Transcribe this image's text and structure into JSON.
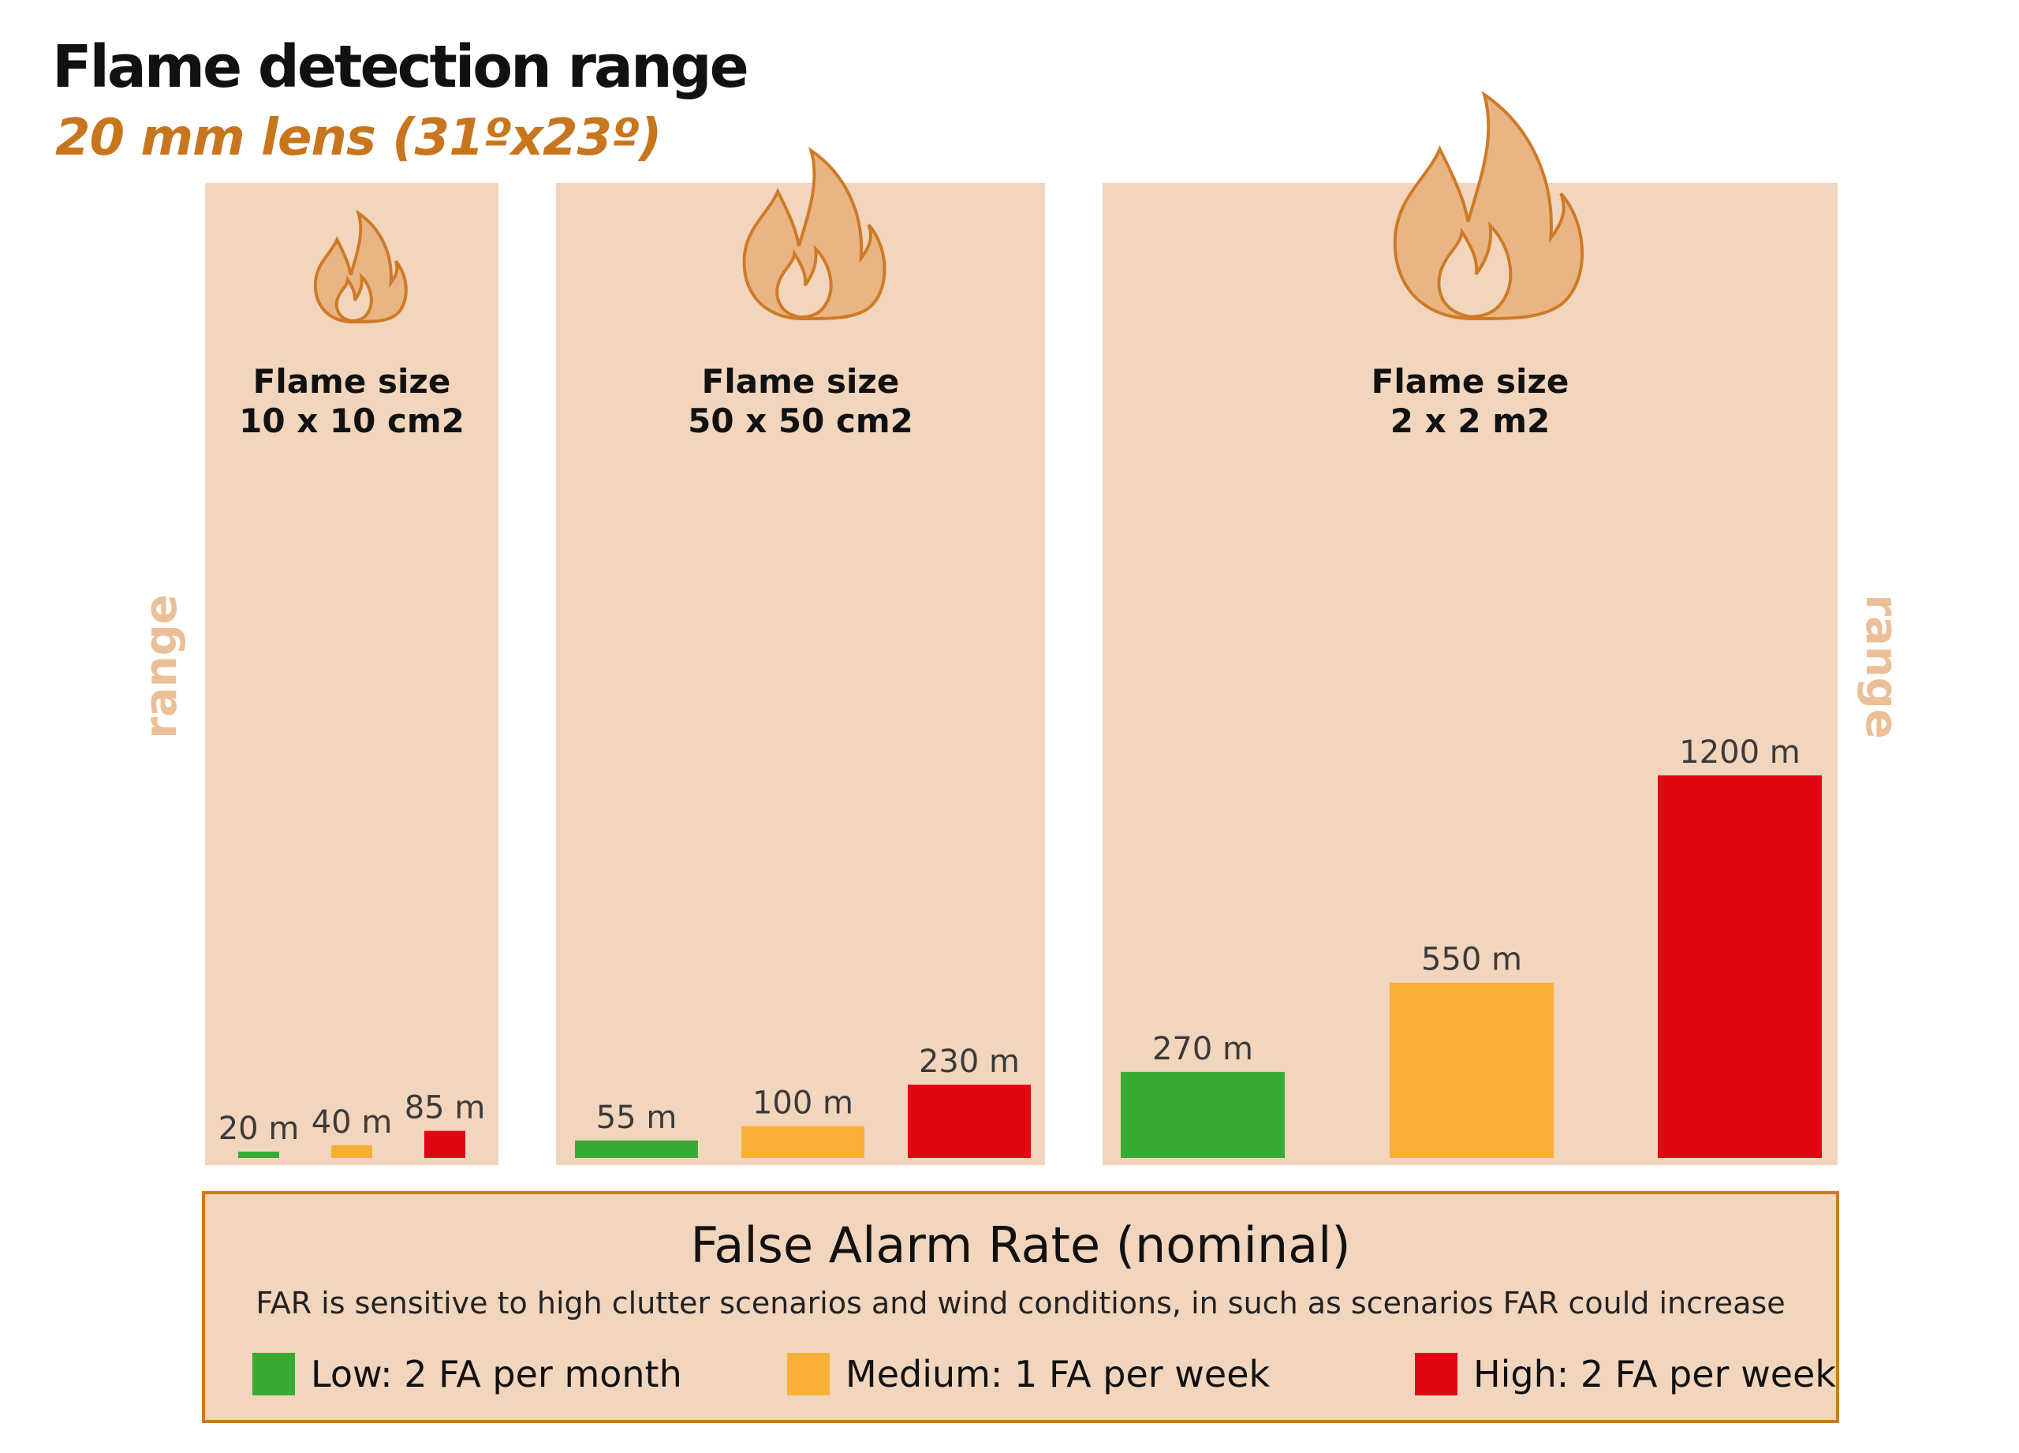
{
  "title": "Flame detection range",
  "subtitle": "20 mm lens (31ºx23º)",
  "side_label_left": "range",
  "side_label_right": "range",
  "colors": {
    "title": "#111111",
    "subtitle": "#c8761e",
    "panel_bg": "#f2d5bd",
    "side_label": "#ebbf97",
    "flame_fill": "#e9b585",
    "flame_stroke": "#cf7a26",
    "legend_border": "#d07820"
  },
  "chart_data": {
    "type": "bar",
    "series_colors": [
      "#3aaa35",
      "#f7b035",
      "#e20613"
    ],
    "panels": [
      {
        "label_line1": "Flame size",
        "label_line2": "10 x 10 cm2",
        "values": [
          20,
          40,
          85
        ],
        "value_labels": [
          "20 m",
          "40 m",
          "85 m"
        ]
      },
      {
        "label_line1": "Flame size",
        "label_line2": "50 x 50 cm2",
        "values": [
          55,
          100,
          230
        ],
        "value_labels": [
          "55 m",
          "100 m",
          "230 m"
        ]
      },
      {
        "label_line1": "Flame size",
        "label_line2": "2 x 2 m2",
        "values": [
          270,
          550,
          1200
        ],
        "value_labels": [
          "270 m",
          "550 m",
          "1200 m"
        ]
      }
    ]
  },
  "legend": {
    "title": "False Alarm Rate (nominal)",
    "note": "FAR is sensitive to high clutter scenarios and wind conditions, in such as scenarios FAR could increase",
    "items": [
      {
        "label": "Low: 2 FA per month",
        "color": "#3aaa35"
      },
      {
        "label": "Medium: 1 FA per week",
        "color": "#f7b035"
      },
      {
        "label": "High: 2 FA per week",
        "color": "#e20613"
      }
    ]
  }
}
